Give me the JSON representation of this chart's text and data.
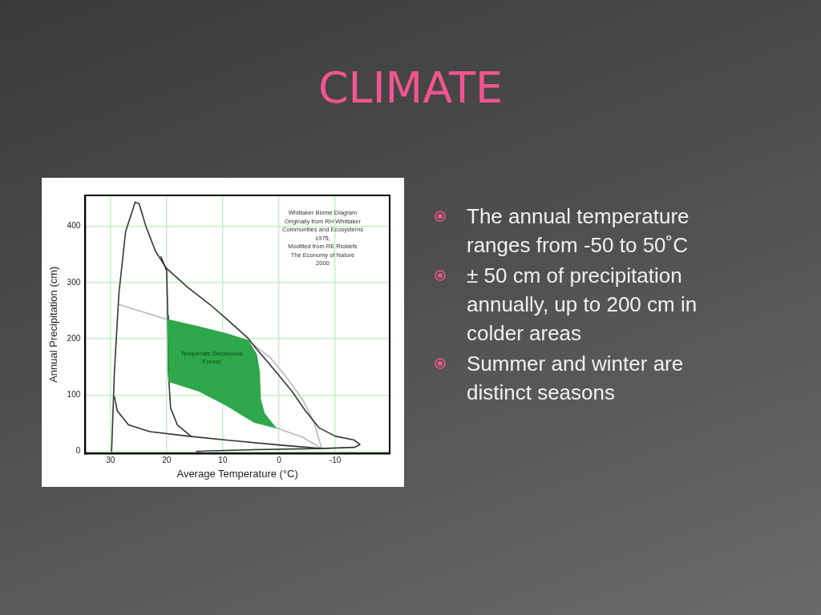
{
  "chart_data": {
    "type": "line",
    "title": "CLIMATE",
    "xlabel": "Average Temperature (°C)",
    "ylabel": "Annual Precipitation (cm)",
    "xlim": [
      34.5,
      -19.7
    ],
    "ylim": [
      -4,
      455
    ],
    "xticks": [
      30,
      20,
      10,
      0,
      -10
    ],
    "yticks": [
      0,
      100,
      200,
      300,
      400
    ],
    "grid": true,
    "legend": false,
    "marker": "none",
    "line_style": "solid",
    "series": [
      {
        "type": "area",
        "color": "#2ea84a",
        "x": [
          19.8,
          14.2,
          9.4,
          5.5,
          4,
          3.5,
          3.3,
          2.6,
          0.6,
          4.5,
          9.4,
          14.2,
          19.6,
          19.8
        ],
        "values": [
          234,
          221,
          209,
          197,
          172,
          142,
          92,
          67,
          42,
          52,
          82,
          107,
          124,
          234
        ]
      },
      {
        "color": "#333333",
        "x": [
          29.8,
          29.3,
          28.5,
          27.3,
          25.6,
          24.9,
          23.7,
          22,
          20.1,
          16.2,
          12.3,
          9.4,
          5.5,
          4,
          0.6,
          -2.3,
          -4.7,
          -7.1,
          -10,
          -13.4,
          -14.4,
          -13.4,
          -7.6,
          4.5,
          14.7
        ],
        "values": [
          0,
          142,
          281,
          391,
          443,
          440,
          400,
          356,
          326,
          291,
          261,
          236,
          201,
          182,
          142,
          107,
          72,
          42,
          27,
          20,
          12,
          7,
          5,
          3,
          0
        ]
      },
      {
        "color": "#333333",
        "x": [
          29.3,
          28.8,
          26.8,
          23,
          16.2,
          9.4,
          -0.3,
          -7.6
        ],
        "values": [
          97,
          72,
          47,
          35,
          27,
          20,
          11,
          5
        ]
      },
      {
        "color": "#333333",
        "x": [
          21,
          20,
          19.8,
          19.7,
          19.3,
          18.1,
          15.7
        ],
        "values": [
          346,
          321,
          241,
          142,
          77,
          47,
          27
        ]
      },
      {
        "color": "#b8b8b8",
        "x": [
          28.5,
          19.8,
          14.2,
          9.4,
          5.5,
          1.6,
          -1.3,
          -4.2,
          -6.2,
          -7.6
        ],
        "values": [
          261,
          234,
          221,
          209,
          197,
          167,
          132,
          92,
          52,
          5
        ]
      },
      {
        "color": "#b8b8b8",
        "x": [
          0.6,
          -4.2,
          -7.6
        ],
        "values": [
          42,
          25,
          5
        ]
      }
    ],
    "annotations": [
      "Temperate Deciduous Forest",
      "Whittaker Biome Diagram\nOriginally from RH Whittaker\nCommunities and Ecosystems\n1975;\nModified from RE Ricklefs\nThe Economy of Nature\n2000",
      "The annual temperature ranges from -50 to 50˚C",
      "± 50 cm  of precipitation annually, up to 200 cm in colder areas",
      "Summer and winter are distinct seasons"
    ]
  }
}
